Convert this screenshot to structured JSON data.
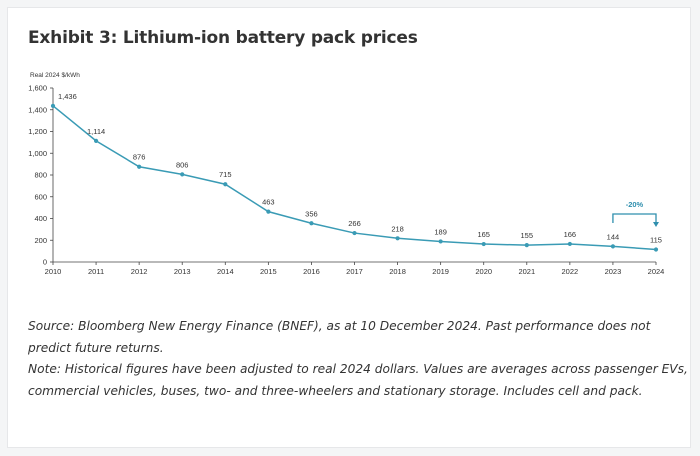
{
  "title": "Exhibit 3: Lithium-ion battery pack prices",
  "notes": {
    "source": "Source: Bloomberg New Energy Finance (BNEF), as at 10 December 2024. Past performance does not predict future returns.",
    "note": "Note: Historical figures have been adjusted to real 2024 dollars. Values are averages across passenger EVs, commercial vehicles, buses, two- and three-wheelers and stationary storage. Includes cell and pack."
  },
  "colors": {
    "series": "#3a9bb5",
    "annotation": "#2f8fae",
    "text": "#333333"
  },
  "chart_data": {
    "type": "line",
    "unit_label": "Real 2024 $/kWh",
    "x": [
      "2010",
      "2011",
      "2012",
      "2013",
      "2014",
      "2015",
      "2016",
      "2017",
      "2018",
      "2019",
      "2020",
      "2021",
      "2022",
      "2023",
      "2024"
    ],
    "series": [
      {
        "values": [
          1436,
          1114,
          876,
          806,
          715,
          463,
          356,
          266,
          218,
          189,
          165,
          155,
          166,
          144,
          115
        ]
      }
    ],
    "data_labels": [
      "1,436",
      "1,114",
      "876",
      "806",
      "715",
      "463",
      "356",
      "266",
      "218",
      "189",
      "165",
      "155",
      "166",
      "144",
      "115"
    ],
    "yticks": [
      "0",
      "200",
      "400",
      "600",
      "800",
      "1,000",
      "1,200",
      "1,400",
      "1,600"
    ],
    "ylim": [
      0,
      1600
    ],
    "grid": false,
    "annotation": {
      "text": "-20%",
      "from": "2023",
      "to": "2024"
    }
  }
}
